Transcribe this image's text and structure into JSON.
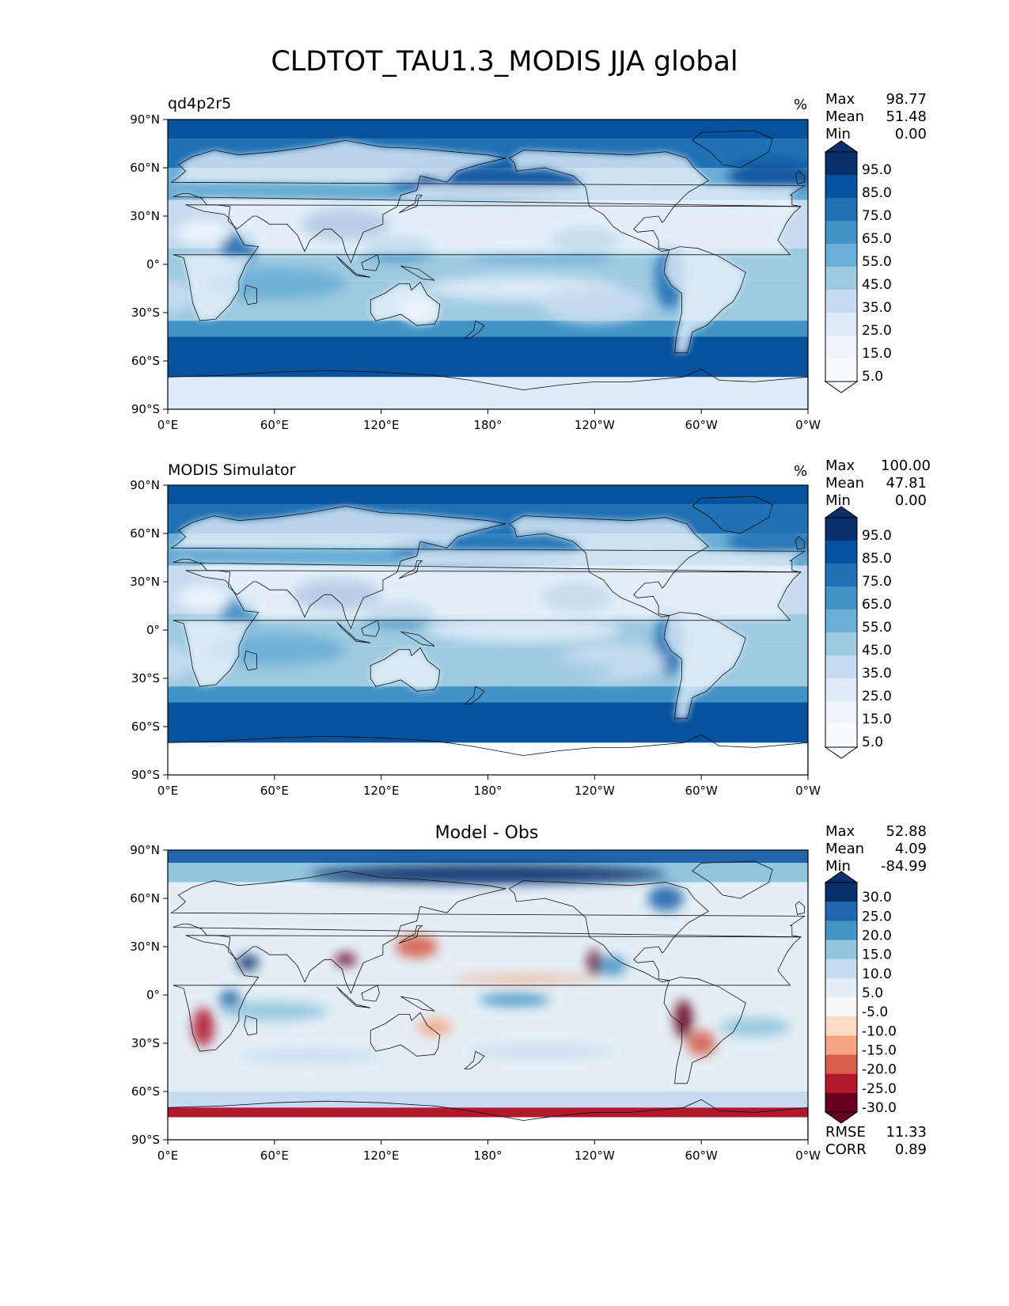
{
  "figure": {
    "title": "CLDTOT_TAU1.3_MODIS JJA global"
  },
  "lat_ticks": [
    "90°N",
    "60°N",
    "30°N",
    "0°",
    "30°S",
    "60°S",
    "90°S"
  ],
  "lon_ticks": [
    "0°E",
    "60°E",
    "120°E",
    "180°",
    "120°W",
    "60°W",
    "0°W"
  ],
  "panels": [
    {
      "title": "qd4p2r5",
      "unit": "%",
      "stats": [
        {
          "label": "Max",
          "value": "98.77"
        },
        {
          "label": "Mean",
          "value": "51.48"
        },
        {
          "label": "Min",
          "value": "0.00"
        }
      ],
      "colorbar": {
        "labels": [
          "95.0",
          "85.0",
          "75.0",
          "65.0",
          "55.0",
          "45.0",
          "35.0",
          "25.0",
          "15.0",
          "5.0"
        ],
        "colors": [
          "#08306b",
          "#08519c",
          "#2171b5",
          "#4292c6",
          "#6baed6",
          "#9ecae1",
          "#c6dbef",
          "#deebf7",
          "#eef5fc",
          "#f7fbff"
        ]
      },
      "colormap": "Blues",
      "extra_stats": []
    },
    {
      "title": "MODIS Simulator",
      "unit": "%",
      "stats": [
        {
          "label": "Max",
          "value": "100.00"
        },
        {
          "label": "Mean",
          "value": "47.81"
        },
        {
          "label": "Min",
          "value": "0.00"
        }
      ],
      "colorbar": {
        "labels": [
          "95.0",
          "85.0",
          "75.0",
          "65.0",
          "55.0",
          "45.0",
          "35.0",
          "25.0",
          "15.0",
          "5.0"
        ],
        "colors": [
          "#08306b",
          "#08519c",
          "#2171b5",
          "#4292c6",
          "#6baed6",
          "#9ecae1",
          "#c6dbef",
          "#deebf7",
          "#eef5fc",
          "#f7fbff"
        ]
      },
      "colormap": "Blues",
      "extra_stats": []
    },
    {
      "title": "Model - Obs",
      "unit": "",
      "stats": [
        {
          "label": "Max",
          "value": "52.88"
        },
        {
          "label": "Mean",
          "value": "4.09"
        },
        {
          "label": "Min",
          "value": "-84.99"
        }
      ],
      "colorbar": {
        "labels": [
          "30.0",
          "25.0",
          "20.0",
          "15.0",
          "10.0",
          "5.0",
          "-5.0",
          "-10.0",
          "-15.0",
          "-20.0",
          "-25.0",
          "-30.0"
        ],
        "colors": [
          "#08306b",
          "#2166ac",
          "#4393c3",
          "#92c5de",
          "#c6dbef",
          "#e4eef6",
          "#f7f7f7",
          "#fddbc7",
          "#f4a582",
          "#d6604d",
          "#b2182b",
          "#67001f"
        ]
      },
      "colormap": "RdBu",
      "extra_stats": [
        {
          "label": "RMSE",
          "value": "11.33"
        },
        {
          "label": "CORR",
          "value": "0.89"
        }
      ]
    }
  ]
}
